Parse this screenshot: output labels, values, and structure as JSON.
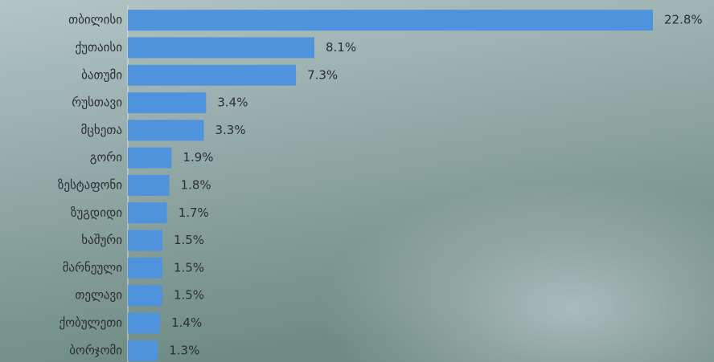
{
  "chart_data": {
    "type": "bar",
    "orientation": "horizontal",
    "categories": [
      "თბილისი",
      "ქუთაისი",
      "ბათუმი",
      "რუსთავი",
      "მცხეთა",
      "გორი",
      "ზესტაფონი",
      "ზუგდიდი",
      "ხაშური",
      "მარნეული",
      "თელავი",
      "ქობულეთი",
      "ბორჯომი"
    ],
    "values": [
      22.8,
      8.1,
      7.3,
      3.4,
      3.3,
      1.9,
      1.8,
      1.7,
      1.5,
      1.5,
      1.5,
      1.4,
      1.3
    ],
    "value_labels": [
      "22.8%",
      "8.1%",
      "7.3%",
      "3.4%",
      "3.3%",
      "1.9%",
      "1.8%",
      "1.7%",
      "1.5%",
      "1.5%",
      "1.5%",
      "1.4%",
      "1.3%"
    ],
    "color": "#4f93dd"
  }
}
